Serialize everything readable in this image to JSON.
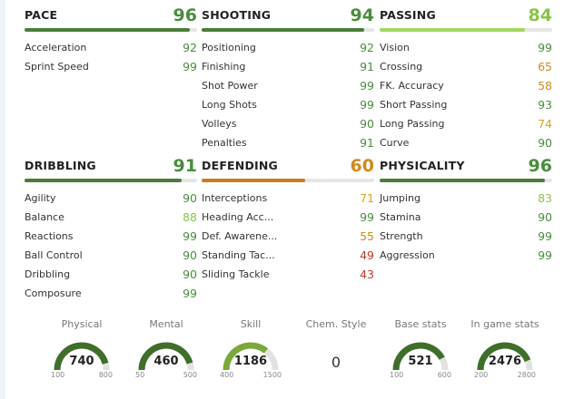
{
  "colors": {
    "dark_green": "#4a8c3f",
    "light_green": "#8bc34a",
    "orange": "#d08a1c",
    "red": "#c0392b",
    "pace_bar": "#4a7d3a",
    "passing_bar": "#a4d65e",
    "defending_bar": "#c97e1e"
  },
  "categories": [
    {
      "name": "PACE",
      "value": "96",
      "level": 0.96,
      "color": "#4a8c3f",
      "bar_color": "#4a7d3a",
      "stats": [
        {
          "name": "Acceleration",
          "value": "92",
          "color": "#4a8c3f"
        },
        {
          "name": "Sprint Speed",
          "value": "99",
          "color": "#4a8c3f"
        }
      ]
    },
    {
      "name": "SHOOTING",
      "value": "94",
      "level": 0.94,
      "color": "#4a8c3f",
      "bar_color": "#4a7d3a",
      "stats": [
        {
          "name": "Positioning",
          "value": "92",
          "color": "#4a8c3f"
        },
        {
          "name": "Finishing",
          "value": "91",
          "color": "#4a8c3f"
        },
        {
          "name": "Shot Power",
          "value": "99",
          "color": "#4a8c3f"
        },
        {
          "name": "Long Shots",
          "value": "99",
          "color": "#4a8c3f"
        },
        {
          "name": "Volleys",
          "value": "90",
          "color": "#4a8c3f"
        },
        {
          "name": "Penalties",
          "value": "91",
          "color": "#4a8c3f"
        }
      ]
    },
    {
      "name": "PASSING",
      "value": "84",
      "level": 0.84,
      "color": "#8bc34a",
      "bar_color": "#a4d65e",
      "stats": [
        {
          "name": "Vision",
          "value": "99",
          "color": "#4a8c3f"
        },
        {
          "name": "Crossing",
          "value": "65",
          "color": "#d08a1c"
        },
        {
          "name": "FK. Accuracy",
          "value": "58",
          "color": "#d08a1c"
        },
        {
          "name": "Short Passing",
          "value": "93",
          "color": "#4a8c3f"
        },
        {
          "name": "Long Passing",
          "value": "74",
          "color": "#d9a520"
        },
        {
          "name": "Curve",
          "value": "90",
          "color": "#4a8c3f"
        }
      ]
    },
    {
      "name": "DRIBBLING",
      "value": "91",
      "level": 0.91,
      "color": "#4a8c3f",
      "bar_color": "#4a7d3a",
      "stats": [
        {
          "name": "Agility",
          "value": "90",
          "color": "#4a8c3f"
        },
        {
          "name": "Balance",
          "value": "88",
          "color": "#8bc34a"
        },
        {
          "name": "Reactions",
          "value": "99",
          "color": "#4a8c3f"
        },
        {
          "name": "Ball Control",
          "value": "90",
          "color": "#4a8c3f"
        },
        {
          "name": "Dribbling",
          "value": "90",
          "color": "#4a8c3f"
        },
        {
          "name": "Composure",
          "value": "99",
          "color": "#4a8c3f"
        }
      ]
    },
    {
      "name": "DEFENDING",
      "value": "60",
      "level": 0.6,
      "color": "#d08a1c",
      "bar_color": "#c97e1e",
      "stats": [
        {
          "name": "Interceptions",
          "value": "71",
          "color": "#d9a520"
        },
        {
          "name": "Heading Acc...",
          "value": "99",
          "color": "#4a8c3f"
        },
        {
          "name": "Def. Awarene...",
          "value": "55",
          "color": "#d08a1c"
        },
        {
          "name": "Standing Tac...",
          "value": "49",
          "color": "#c0392b"
        },
        {
          "name": "Sliding Tackle",
          "value": "43",
          "color": "#c0392b"
        }
      ]
    },
    {
      "name": "PHYSICALITY",
      "value": "96",
      "level": 0.96,
      "color": "#4a8c3f",
      "bar_color": "#4a7d3a",
      "stats": [
        {
          "name": "Jumping",
          "value": "83",
          "color": "#8bc34a"
        },
        {
          "name": "Stamina",
          "value": "90",
          "color": "#4a8c3f"
        },
        {
          "name": "Strength",
          "value": "99",
          "color": "#4a8c3f"
        },
        {
          "name": "Aggression",
          "value": "99",
          "color": "#4a8c3f"
        }
      ]
    }
  ],
  "gauges": [
    {
      "title": "Physical",
      "value": "740",
      "min": "100",
      "max": "800",
      "level": 0.914,
      "color": "#3f6e2a"
    },
    {
      "title": "Mental",
      "value": "460",
      "min": "50",
      "max": "500",
      "level": 0.911,
      "color": "#3f6e2a"
    },
    {
      "title": "Skill",
      "value": "1186",
      "min": "400",
      "max": "1500",
      "level": 0.715,
      "color": "#7ba83a"
    },
    {
      "title": "Chem. Style",
      "value": "0",
      "type": "text"
    },
    {
      "title": "Base stats",
      "value": "521",
      "min": "100",
      "max": "600",
      "level": 0.842,
      "color": "#3f6e2a"
    },
    {
      "title": "In game stats",
      "value": "2476",
      "min": "200",
      "max": "2800",
      "level": 0.875,
      "color": "#3f6e2a"
    }
  ]
}
